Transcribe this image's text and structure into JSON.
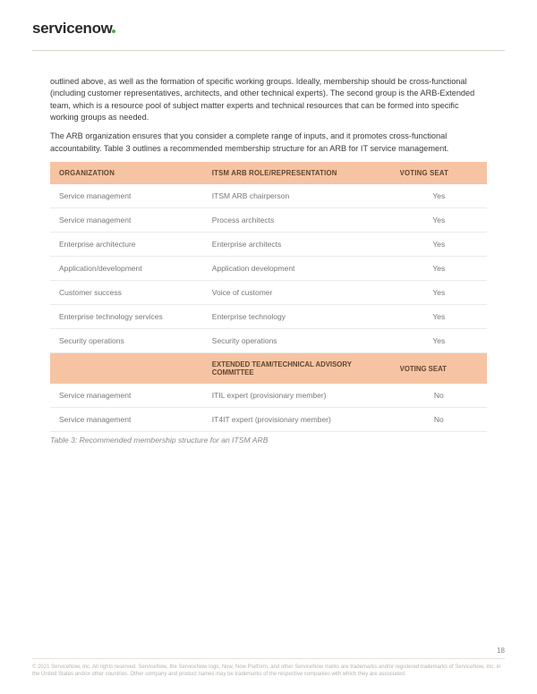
{
  "logo_text": "servicenow",
  "paragraphs": {
    "p1": "outlined above, as well as the formation of specific working groups. Ideally, membership should be cross-functional (including customer representatives, architects, and other technical experts). The second group is the ARB-Extended team, which is a resource pool of subject matter experts and technical resources that can be formed into specific working groups as needed.",
    "p2": "The ARB organization ensures that you consider a complete range of inputs, and it promotes cross-functional accountability. Table 3 outlines a recommended membership structure for an ARB for IT service management."
  },
  "table": {
    "header": {
      "organization": "ORGANIZATION",
      "role": "ITSM ARB ROLE/REPRESENTATION",
      "voting": "VOTING SEAT"
    },
    "rows_main": [
      {
        "org": "Service management",
        "role": "ITSM ARB chairperson",
        "vote": "Yes"
      },
      {
        "org": "Service management",
        "role": "Process architects",
        "vote": "Yes"
      },
      {
        "org": "Enterprise architecture",
        "role": "Enterprise architects",
        "vote": "Yes"
      },
      {
        "org": "Application/development",
        "role": "Application development",
        "vote": "Yes"
      },
      {
        "org": "Customer success",
        "role": "Voice of customer",
        "vote": "Yes"
      },
      {
        "org": "Enterprise technology services",
        "role": "Enterprise technology",
        "vote": "Yes"
      },
      {
        "org": "Security operations",
        "role": "Security operations",
        "vote": "Yes"
      }
    ],
    "subheader": {
      "organization": "",
      "role": "EXTENDED TEAM/TECHNICAL ADVISORY COMMITTEE",
      "voting": "VOTING SEAT"
    },
    "rows_ext": [
      {
        "org": "Service management",
        "role": "ITIL expert (provisionary member)",
        "vote": "No"
      },
      {
        "org": "Service management",
        "role": "IT4IT expert (provisionary member)",
        "vote": "No"
      }
    ],
    "caption": "Table 3: Recommended membership structure for an ITSM ARB"
  },
  "footer": {
    "page_number": "18",
    "legal": "© 2021 ServiceNow, Inc. All rights reserved. ServiceNow, the ServiceNow logo, Now, Now Platform, and other ServiceNow marks are trademarks and/or registered trademarks of ServiceNow, Inc. in the United States and/or other countries. Other company and product names may be trademarks of the respective companies with which they are associated."
  },
  "colors": {
    "header_bg": "#f6c4a3",
    "header_text": "#62452e",
    "body_text": "#787878",
    "row_border": "#eeeae6",
    "hr": "#d9d2cc",
    "legal": "#b9b3ad"
  }
}
